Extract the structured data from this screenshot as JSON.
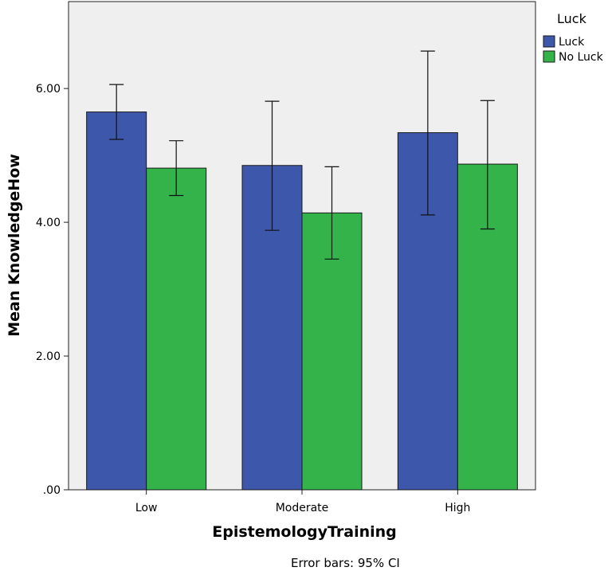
{
  "chart_data": {
    "type": "bar",
    "categories": [
      "Low",
      "Moderate",
      "High"
    ],
    "series": [
      {
        "name": "Luck",
        "color": "#3d57aa",
        "values": [
          5.65,
          4.85,
          5.34
        ],
        "ci_low": [
          5.24,
          3.88,
          4.11
        ],
        "ci_high": [
          6.06,
          5.81,
          6.56
        ]
      },
      {
        "name": "No Luck",
        "color": "#33b34a",
        "values": [
          4.81,
          4.14,
          4.87
        ],
        "ci_low": [
          4.4,
          3.45,
          3.9
        ],
        "ci_high": [
          5.22,
          4.83,
          5.82
        ]
      }
    ],
    "xlabel": "EpistemologyTraining",
    "ylabel": "Mean KnowledgeHow",
    "ylim": [
      0,
      7.3
    ],
    "yticks": [
      0,
      2,
      4,
      6
    ],
    "ytick_labels": [
      ".00",
      "2.00",
      "4.00",
      "6.00"
    ],
    "legend_title": "Luck",
    "legend_position": "top-right",
    "plot_background": "#efefef",
    "grid": false,
    "note": "Error bars: 95% CI"
  }
}
